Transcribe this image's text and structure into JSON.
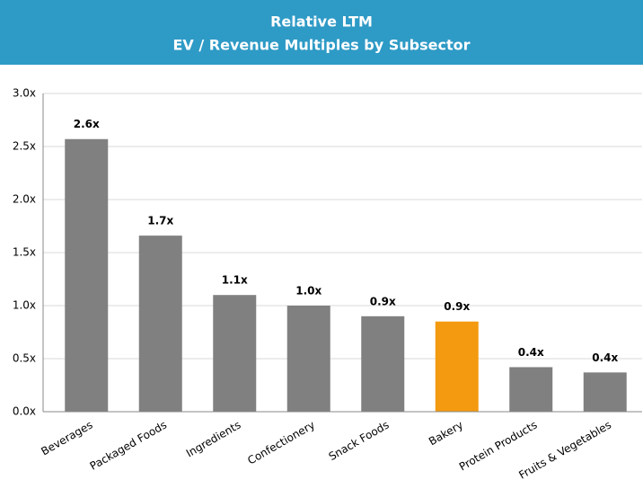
{
  "chart_data": {
    "type": "bar",
    "title": "Relative LTM",
    "subtitle": "EV / Revenue Multiples by Subsector",
    "categories": [
      "Beverages",
      "Packaged Foods",
      "Ingredients",
      "Confectionery",
      "Snack Foods",
      "Bakery",
      "Protein Products",
      "Fruits & Vegetables"
    ],
    "values": [
      2.57,
      1.66,
      1.1,
      1.0,
      0.9,
      0.85,
      0.42,
      0.37
    ],
    "value_labels": [
      "2.6x",
      "1.7x",
      "1.1x",
      "1.0x",
      "0.9x",
      "0.9x",
      "0.4x",
      "0.4x"
    ],
    "colors": [
      "#808080",
      "#808080",
      "#808080",
      "#808080",
      "#808080",
      "#f39a10",
      "#808080",
      "#808080"
    ],
    "ylim": [
      0,
      3
    ],
    "yticks": [
      {
        "value": 0,
        "label": "0.0x"
      },
      {
        "value": 0.5,
        "label": "0.5x"
      },
      {
        "value": 1,
        "label": "1.0x"
      },
      {
        "value": 1.5,
        "label": "1.5x"
      },
      {
        "value": 2,
        "label": "2.0x"
      },
      {
        "value": 2.5,
        "label": "2.5x"
      },
      {
        "value": 3,
        "label": "3.0x"
      }
    ],
    "grid": true
  }
}
